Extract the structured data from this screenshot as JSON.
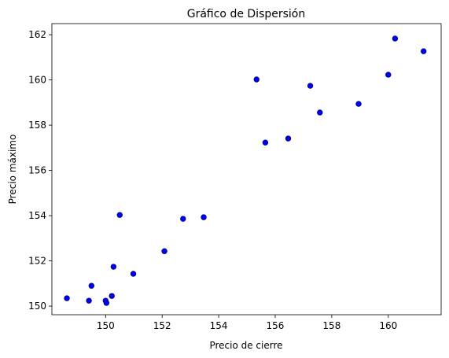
{
  "chart_data": {
    "type": "scatter",
    "title": "Gráfico de Dispersión",
    "xlabel": "Precio de cierre",
    "ylabel": "Precio máximo",
    "x": [
      148.63,
      149.41,
      149.5,
      150.22,
      150.0,
      150.03,
      150.28,
      150.5,
      150.98,
      152.08,
      152.74,
      153.47,
      155.34,
      155.65,
      156.46,
      157.24,
      157.58,
      158.95,
      160.0,
      160.24,
      161.25
    ],
    "y": [
      150.35,
      150.24,
      150.9,
      150.45,
      150.24,
      150.14,
      151.74,
      154.03,
      151.43,
      152.43,
      153.86,
      153.93,
      160.02,
      157.23,
      157.41,
      159.74,
      158.56,
      158.94,
      160.23,
      161.83,
      161.27
    ],
    "color": "#0000ff",
    "edgecolor": "#00008b",
    "xlim": [
      148.1,
      161.87
    ],
    "ylim": [
      149.62,
      162.49
    ],
    "xticks": [
      150,
      152,
      154,
      156,
      158,
      160
    ],
    "yticks": [
      150,
      152,
      154,
      156,
      158,
      160,
      162
    ]
  }
}
